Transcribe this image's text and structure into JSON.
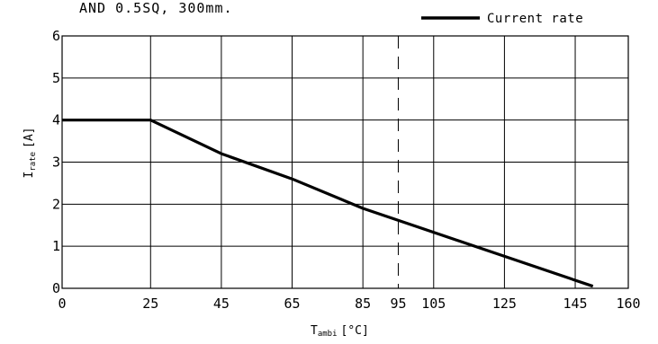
{
  "chart_data": {
    "type": "line",
    "caption": "AND 0.5SQ, 300mm.",
    "legend": {
      "label": "Current rate",
      "placement": "top-right"
    },
    "xlabel": {
      "main": "T",
      "sub": "ambi",
      "unit": "[°C]"
    },
    "ylabel": {
      "main": "I",
      "sub": "rate",
      "unit": "[A]"
    },
    "xlim": [
      0,
      160
    ],
    "ylim": [
      0,
      6
    ],
    "xticks": [
      0,
      25,
      45,
      65,
      85,
      95,
      105,
      125,
      145,
      160
    ],
    "xgrid": [
      25,
      45,
      65,
      85,
      105,
      125,
      145
    ],
    "yticks": [
      0,
      1,
      2,
      3,
      4,
      5,
      6
    ],
    "grid": true,
    "dashed_vline": 95,
    "series": [
      {
        "name": "Current rate",
        "x": [
          0,
          25,
          45,
          65,
          85,
          150
        ],
        "y": [
          4,
          4,
          3.2,
          2.6,
          1.9,
          0.05
        ]
      }
    ]
  }
}
